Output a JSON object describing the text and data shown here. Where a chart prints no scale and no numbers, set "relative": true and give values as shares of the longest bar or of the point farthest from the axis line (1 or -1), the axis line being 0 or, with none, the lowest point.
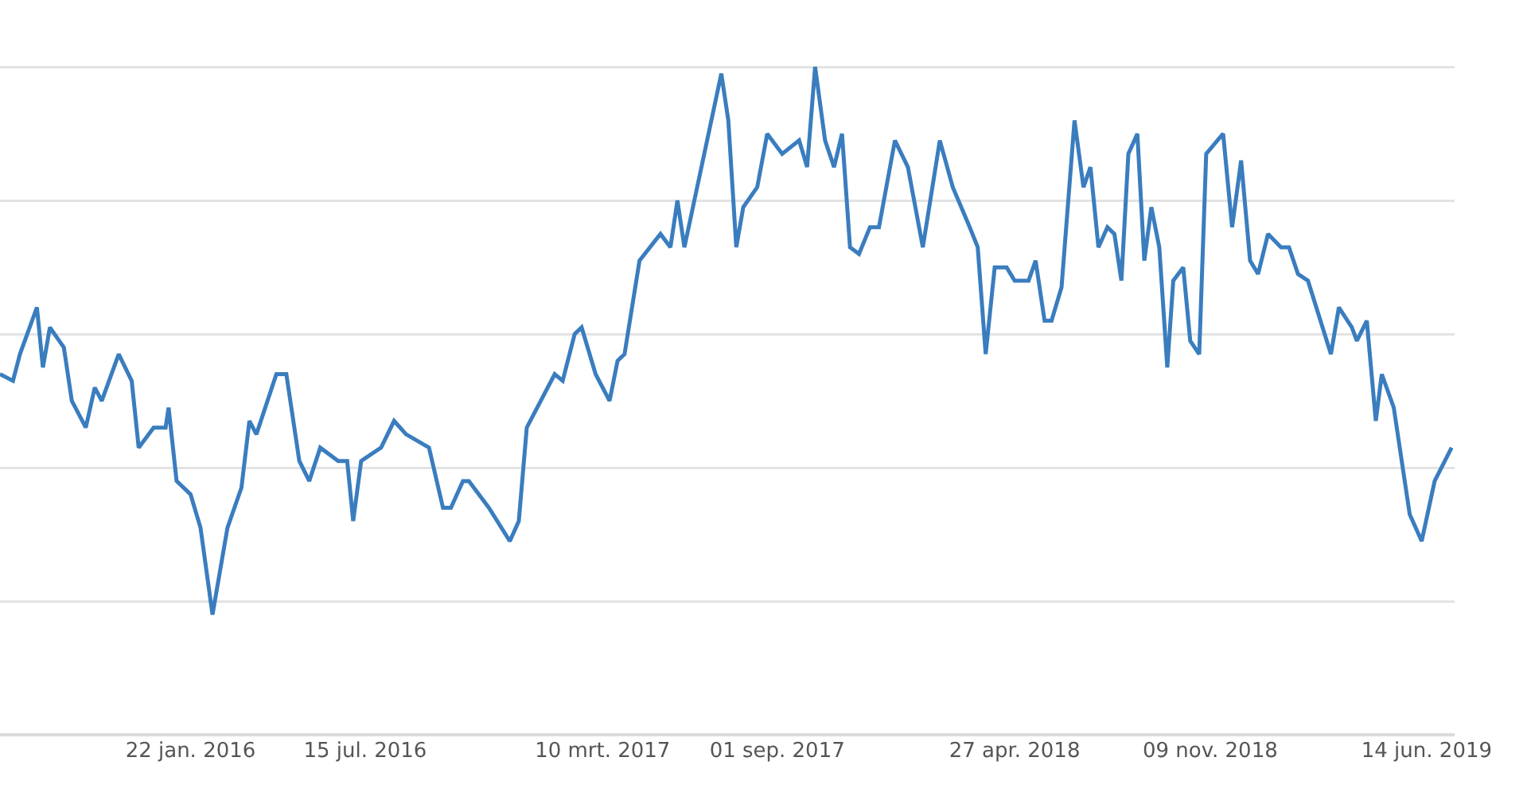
{
  "chart_data": {
    "type": "line",
    "relative": true,
    "grid": "y",
    "line_style": "solid",
    "marker": "none",
    "xlim": [
      "2015-07-15",
      "2019-07-12"
    ],
    "xticks": [
      {
        "value": "2016-01-22",
        "label": "22 jan. 2016"
      },
      {
        "value": "2016-07-15",
        "label": "15 jul. 2016"
      },
      {
        "value": "2017-03-10",
        "label": "10 mrt. 2017"
      },
      {
        "value": "2017-09-01",
        "label": "01 sep. 2017"
      },
      {
        "value": "2018-04-27",
        "label": "27 apr. 2018"
      },
      {
        "value": "2018-11-09",
        "label": "09 nov. 2018"
      },
      {
        "value": "2019-06-14",
        "label": "14 jun. 2019"
      }
    ],
    "x": [
      "2015-07-15",
      "2015-07-28",
      "2015-08-04",
      "2015-08-21",
      "2015-08-27",
      "2015-09-03",
      "2015-09-17",
      "2015-09-25",
      "2015-10-09",
      "2015-10-18",
      "2015-10-25",
      "2015-11-11",
      "2015-11-24",
      "2015-12-01",
      "2015-12-16",
      "2015-12-28",
      "2015-12-31",
      "2016-01-08",
      "2016-01-22",
      "2016-02-01",
      "2016-02-13",
      "2016-02-28",
      "2016-03-13",
      "2016-03-21",
      "2016-03-28",
      "2016-04-17",
      "2016-04-27",
      "2016-05-10",
      "2016-05-20",
      "2016-05-31",
      "2016-06-18",
      "2016-06-27",
      "2016-07-03",
      "2016-07-11",
      "2016-07-31",
      "2016-08-13",
      "2016-08-25",
      "2016-09-17",
      "2016-10-01",
      "2016-10-09",
      "2016-10-21",
      "2016-10-27",
      "2016-11-16",
      "2016-12-07",
      "2016-12-16",
      "2016-12-24",
      "2017-01-21",
      "2017-01-29",
      "2017-02-10",
      "2017-02-17",
      "2017-03-03",
      "2017-03-17",
      "2017-03-25",
      "2017-04-01",
      "2017-04-16",
      "2017-05-07",
      "2017-05-17",
      "2017-05-24",
      "2017-05-31",
      "2017-07-07",
      "2017-07-14",
      "2017-07-22",
      "2017-07-29",
      "2017-08-12",
      "2017-08-22",
      "2017-09-06",
      "2017-09-23",
      "2017-10-01",
      "2017-10-09",
      "2017-10-19",
      "2017-10-28",
      "2017-11-05",
      "2017-11-13",
      "2017-11-22",
      "2017-12-03",
      "2017-12-12",
      "2017-12-28",
      "2018-01-10",
      "2018-01-25",
      "2018-02-11",
      "2018-02-24",
      "2018-03-13",
      "2018-03-21",
      "2018-03-29",
      "2018-04-07",
      "2018-04-19",
      "2018-04-27",
      "2018-05-11",
      "2018-05-18",
      "2018-05-27",
      "2018-06-03",
      "2018-06-13",
      "2018-06-26",
      "2018-07-05",
      "2018-07-12",
      "2018-07-20",
      "2018-07-29",
      "2018-08-05",
      "2018-08-12",
      "2018-08-19",
      "2018-08-28",
      "2018-09-04",
      "2018-09-11",
      "2018-09-19",
      "2018-09-27",
      "2018-10-03",
      "2018-10-13",
      "2018-10-20",
      "2018-10-29",
      "2018-11-05",
      "2018-11-22",
      "2018-12-01",
      "2018-12-10",
      "2018-12-19",
      "2018-12-27",
      "2019-01-06",
      "2019-01-19",
      "2019-01-27",
      "2019-02-05",
      "2019-02-15",
      "2019-03-10",
      "2019-03-18",
      "2019-03-31",
      "2019-04-05",
      "2019-04-15",
      "2019-04-24",
      "2019-04-30",
      "2019-05-12",
      "2019-05-28",
      "2019-06-09",
      "2019-06-22",
      "2019-07-09"
    ],
    "series": [
      {
        "color": "#3a7dbf",
        "values": [
          0.54,
          0.53,
          0.57,
          0.64,
          0.55,
          0.61,
          0.58,
          0.5,
          0.46,
          0.52,
          0.5,
          0.57,
          0.53,
          0.43,
          0.46,
          0.46,
          0.49,
          0.38,
          0.36,
          0.31,
          0.18,
          0.31,
          0.37,
          0.47,
          0.45,
          0.54,
          0.54,
          0.41,
          0.38,
          0.43,
          0.41,
          0.41,
          0.32,
          0.41,
          0.43,
          0.47,
          0.45,
          0.43,
          0.34,
          0.34,
          0.38,
          0.38,
          0.34,
          0.29,
          0.32,
          0.46,
          0.54,
          0.53,
          0.6,
          0.61,
          0.54,
          0.5,
          0.56,
          0.57,
          0.71,
          0.75,
          0.73,
          0.8,
          0.73,
          0.99,
          0.92,
          0.73,
          0.79,
          0.82,
          0.9,
          0.87,
          0.89,
          0.85,
          1.0,
          0.89,
          0.85,
          0.9,
          0.73,
          0.72,
          0.76,
          0.76,
          0.89,
          0.85,
          0.73,
          0.89,
          0.82,
          0.76,
          0.73,
          0.57,
          0.7,
          0.7,
          0.68,
          0.68,
          0.71,
          0.62,
          0.62,
          0.67,
          0.92,
          0.82,
          0.85,
          0.73,
          0.76,
          0.75,
          0.68,
          0.87,
          0.9,
          0.71,
          0.79,
          0.73,
          0.55,
          0.68,
          0.7,
          0.59,
          0.57,
          0.87,
          0.9,
          0.76,
          0.86,
          0.71,
          0.69,
          0.75,
          0.73,
          0.73,
          0.69,
          0.68,
          0.57,
          0.64,
          0.61,
          0.59,
          0.62,
          0.47,
          0.54,
          0.49,
          0.33,
          0.29,
          0.38,
          0.43
        ]
      }
    ]
  }
}
